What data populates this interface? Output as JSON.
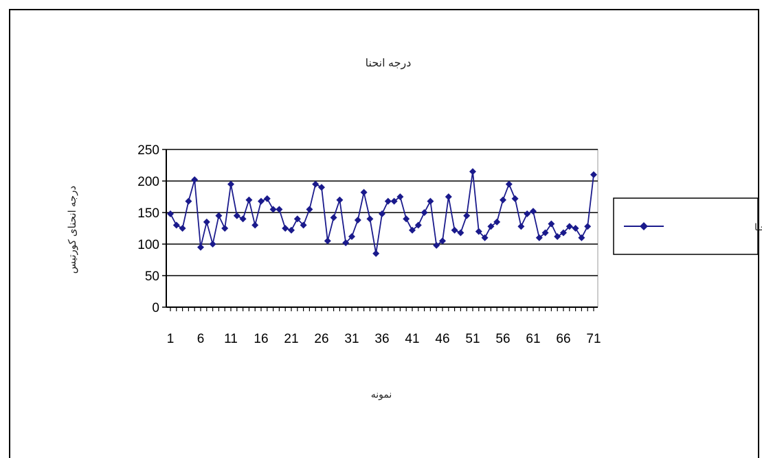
{
  "chart_data": {
    "type": "line",
    "title": "درجه انحنا",
    "xlabel": "نمونه",
    "ylabel": "درجه انحنای کورتیس",
    "ylim": [
      0,
      250
    ],
    "yticks": [
      0,
      50,
      100,
      150,
      200,
      250
    ],
    "xlim": [
      1,
      71
    ],
    "xtick_labels": [
      "1",
      "6",
      "11",
      "16",
      "21",
      "26",
      "31",
      "36",
      "41",
      "46",
      "51",
      "56",
      "61",
      "66",
      "71"
    ],
    "grid": true,
    "legend_position": "right",
    "series": [
      {
        "name": "درجه انحنا",
        "color": "#1a1a8c",
        "x": [
          1,
          2,
          3,
          4,
          5,
          6,
          7,
          8,
          9,
          10,
          11,
          12,
          13,
          14,
          15,
          16,
          17,
          18,
          19,
          20,
          21,
          22,
          23,
          24,
          25,
          26,
          27,
          28,
          29,
          30,
          31,
          32,
          33,
          34,
          35,
          36,
          37,
          38,
          39,
          40,
          41,
          42,
          43,
          44,
          45,
          46,
          47,
          48,
          49,
          50,
          51,
          52,
          53,
          54,
          55,
          56,
          57,
          58,
          59,
          60,
          61,
          62,
          63,
          64,
          65,
          66,
          67,
          68,
          69,
          70,
          71
        ],
        "values": [
          148,
          130,
          125,
          168,
          202,
          95,
          135,
          100,
          145,
          125,
          195,
          145,
          140,
          170,
          130,
          168,
          172,
          155,
          155,
          125,
          122,
          140,
          130,
          155,
          195,
          190,
          105,
          142,
          170,
          102,
          112,
          138,
          182,
          140,
          85,
          148,
          168,
          168,
          175,
          140,
          122,
          130,
          150,
          168,
          98,
          105,
          175,
          122,
          118,
          145,
          215,
          120,
          110,
          128,
          135,
          170,
          195,
          172,
          128,
          148,
          152,
          110,
          118,
          132,
          112,
          118,
          128,
          125,
          110,
          128,
          210
        ]
      }
    ]
  }
}
